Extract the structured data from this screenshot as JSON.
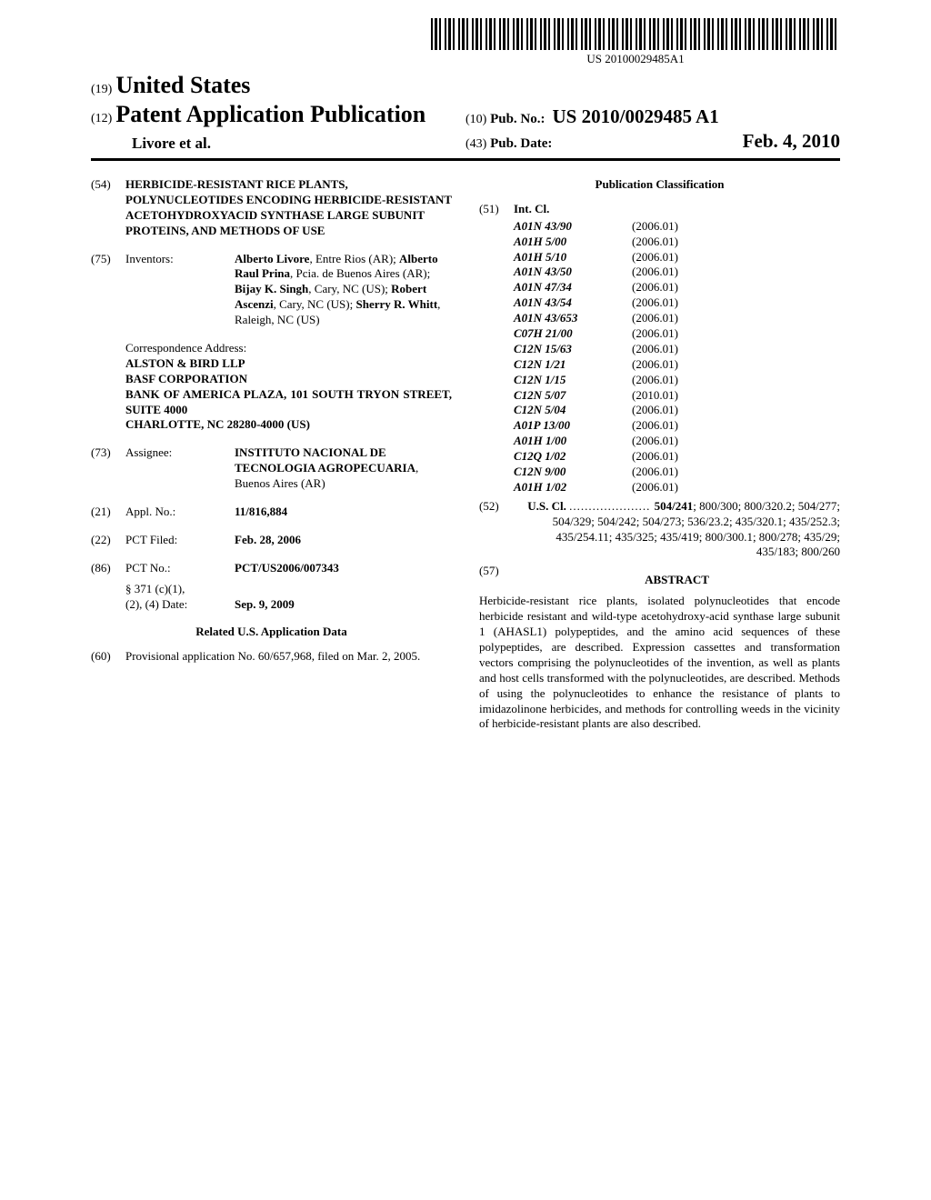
{
  "barcode_text": "US 20100029485A1",
  "header": {
    "code19": "(19)",
    "country": "United States",
    "code12": "(12)",
    "pub_type": "Patent Application Publication",
    "authors": "Livore et al.",
    "code10": "(10)",
    "pub_no_label": "Pub. No.:",
    "pub_no": "US 2010/0029485 A1",
    "code43": "(43)",
    "pub_date_label": "Pub. Date:",
    "pub_date": "Feb. 4, 2010"
  },
  "left": {
    "title": {
      "code": "(54)",
      "text": "HERBICIDE-RESISTANT RICE PLANTS, POLYNUCLEOTIDES ENCODING HERBICIDE-RESISTANT ACETOHYDROXYACID SYNTHASE LARGE SUBUNIT PROTEINS, AND METHODS OF USE"
    },
    "inventors": {
      "code": "(75)",
      "label": "Inventors:",
      "value_html": "<b>Alberto Livore</b>, Entre Rios (AR); <b>Alberto Raul Prina</b>, Pcia. de Buenos Aires (AR); <b>Bijay K. Singh</b>, Cary, NC (US); <b>Robert Ascenzi</b>, Cary, NC (US); <b>Sherry R. Whitt</b>, Raleigh, NC (US)"
    },
    "correspondence": {
      "label": "Correspondence Address:",
      "lines": [
        "ALSTON & BIRD LLP",
        "BASF CORPORATION",
        "BANK OF AMERICA PLAZA, 101 SOUTH TRYON STREET, SUITE 4000",
        "CHARLOTTE, NC 28280-4000 (US)"
      ]
    },
    "assignee": {
      "code": "(73)",
      "label": "Assignee:",
      "value_html": "<b>INSTITUTO NACIONAL DE TECNOLOGIA AGROPECUARIA</b>, Buenos Aires (AR)"
    },
    "appl": {
      "code": "(21)",
      "label": "Appl. No.:",
      "value": "11/816,884"
    },
    "pct_filed": {
      "code": "(22)",
      "label": "PCT Filed:",
      "value": "Feb. 28, 2006"
    },
    "pct_no": {
      "code": "(86)",
      "label": "PCT No.:",
      "value": "PCT/US2006/007343"
    },
    "s371": {
      "label1": "§ 371 (c)(1),",
      "label2": "(2), (4) Date:",
      "value": "Sep. 9, 2009"
    },
    "related": {
      "heading": "Related U.S. Application Data",
      "code": "(60)",
      "text": "Provisional application No. 60/657,968, filed on Mar. 2, 2005."
    }
  },
  "right": {
    "classification_heading": "Publication Classification",
    "intcl": {
      "code": "(51)",
      "label": "Int. Cl.",
      "items": [
        {
          "code": "A01N 43/90",
          "year": "(2006.01)"
        },
        {
          "code": "A01H 5/00",
          "year": "(2006.01)"
        },
        {
          "code": "A01H 5/10",
          "year": "(2006.01)"
        },
        {
          "code": "A01N 43/50",
          "year": "(2006.01)"
        },
        {
          "code": "A01N 47/34",
          "year": "(2006.01)"
        },
        {
          "code": "A01N 43/54",
          "year": "(2006.01)"
        },
        {
          "code": "A01N 43/653",
          "year": "(2006.01)"
        },
        {
          "code": "C07H 21/00",
          "year": "(2006.01)"
        },
        {
          "code": "C12N 15/63",
          "year": "(2006.01)"
        },
        {
          "code": "C12N 1/21",
          "year": "(2006.01)"
        },
        {
          "code": "C12N 1/15",
          "year": "(2006.01)"
        },
        {
          "code": "C12N 5/07",
          "year": "(2010.01)"
        },
        {
          "code": "C12N 5/04",
          "year": "(2006.01)"
        },
        {
          "code": "A01P 13/00",
          "year": "(2006.01)"
        },
        {
          "code": "A01H 1/00",
          "year": "(2006.01)"
        },
        {
          "code": "C12Q 1/02",
          "year": "(2006.01)"
        },
        {
          "code": "C12N 9/00",
          "year": "(2006.01)"
        },
        {
          "code": "A01H 1/02",
          "year": "(2006.01)"
        }
      ]
    },
    "uscl": {
      "code": "(52)",
      "label": "U.S. Cl.",
      "lead": "504/241",
      "rest": "; 800/300; 800/320.2; 504/277; 504/329; 504/242; 504/273; 536/23.2; 435/320.1; 435/252.3; 435/254.11; 435/325; 435/419; 800/300.1; 800/278; 435/29; 435/183; 800/260"
    },
    "abstract": {
      "code": "(57)",
      "heading": "ABSTRACT",
      "text": "Herbicide-resistant rice plants, isolated polynucleotides that encode herbicide resistant and wild-type acetohydroxy-acid synthase large subunit 1 (AHASL1) polypeptides, and the amino acid sequences of these polypeptides, are described. Expression cassettes and transformation vectors comprising the polynucleotides of the invention, as well as plants and host cells transformed with the polynucleotides, are described. Methods of using the polynucleotides to enhance the resistance of plants to imidazolinone herbicides, and methods for controlling weeds in the vicinity of herbicide-resistant plants are also described."
    }
  }
}
